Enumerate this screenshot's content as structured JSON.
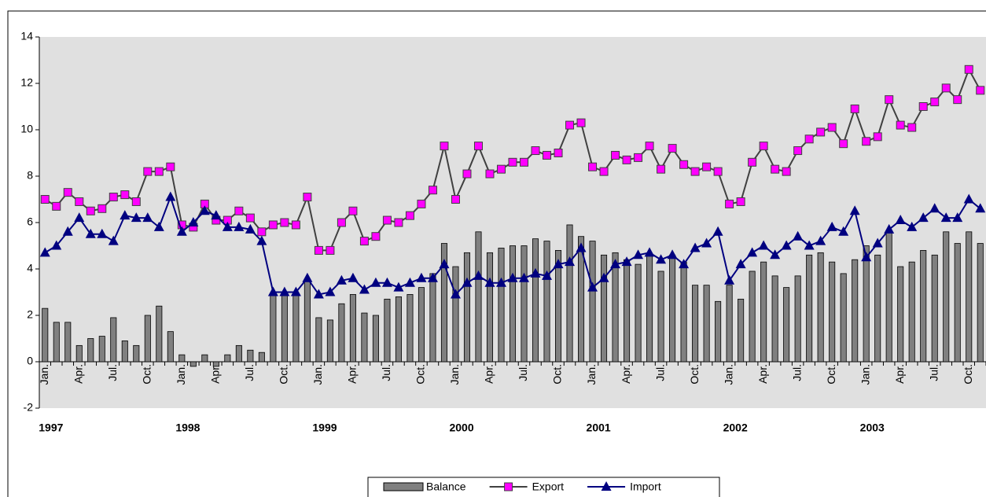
{
  "chart_data": {
    "type": "bar-line",
    "categories": [
      "Jan.",
      null,
      null,
      "Apr.",
      null,
      null,
      "Jul.",
      null,
      null,
      "Oct.",
      null,
      null,
      "Jan.",
      null,
      null,
      "Apr.",
      null,
      null,
      "Jul.",
      null,
      null,
      "Oct.",
      null,
      null,
      "Jan.",
      null,
      null,
      "Apr.",
      null,
      null,
      "Jul.",
      null,
      null,
      "Oct.",
      null,
      null,
      "Jan.",
      null,
      null,
      "Apr.",
      null,
      null,
      "Jul.",
      null,
      null,
      "Oct.",
      null,
      null,
      "Jan.",
      null,
      null,
      "Apr.",
      null,
      null,
      "Jul.",
      null,
      null,
      "Oct.",
      null,
      null,
      "Jan.",
      null,
      null,
      "Apr.",
      null,
      null,
      "Jul.",
      null,
      null,
      "Oct.",
      null,
      null,
      "Jan.",
      null,
      null,
      "Apr.",
      null,
      null,
      "Jul.",
      null,
      null,
      "Oct.",
      null
    ],
    "year_labels": [
      "1997",
      "1998",
      "1999",
      "2000",
      "2001",
      "2002",
      "2003"
    ],
    "ylim": [
      -2,
      14
    ],
    "yticks": [
      -2,
      0,
      2,
      4,
      6,
      8,
      10,
      12,
      14
    ],
    "series": [
      {
        "name": "Balance",
        "kind": "bar",
        "color": "#808080",
        "values": [
          2.3,
          1.7,
          1.7,
          0.7,
          1.0,
          1.1,
          1.9,
          0.9,
          0.7,
          2.0,
          2.4,
          1.3,
          0.3,
          -0.2,
          0.3,
          -0.2,
          0.3,
          0.7,
          0.5,
          0.4,
          2.9,
          3.0,
          2.9,
          3.5,
          1.9,
          1.8,
          2.5,
          2.9,
          2.1,
          2.0,
          2.7,
          2.8,
          2.9,
          3.2,
          3.8,
          5.1,
          4.1,
          4.7,
          5.6,
          4.7,
          4.9,
          5.0,
          5.0,
          5.3,
          5.2,
          4.8,
          5.9,
          5.4,
          5.2,
          4.6,
          4.7,
          4.4,
          4.2,
          4.6,
          3.9,
          4.6,
          4.3,
          3.3,
          3.3,
          2.6,
          3.3,
          2.7,
          3.9,
          4.3,
          3.7,
          3.2,
          3.7,
          4.6,
          4.7,
          4.3,
          3.8,
          4.4,
          5.0,
          4.6,
          5.6,
          4.1,
          4.3,
          4.8,
          4.6,
          5.6,
          5.1,
          5.6,
          5.1
        ]
      },
      {
        "name": "Export",
        "kind": "line",
        "marker": "square",
        "color": "#ff00ff",
        "line_color": "#404040",
        "values": [
          7.0,
          6.7,
          7.3,
          6.9,
          6.5,
          6.6,
          7.1,
          7.2,
          6.9,
          8.2,
          8.2,
          8.4,
          5.9,
          5.8,
          6.8,
          6.1,
          6.1,
          6.5,
          6.2,
          5.6,
          5.9,
          6.0,
          5.9,
          7.1,
          4.8,
          4.8,
          6.0,
          6.5,
          5.2,
          5.4,
          6.1,
          6.0,
          6.3,
          6.8,
          7.4,
          9.3,
          7.0,
          8.1,
          9.3,
          8.1,
          8.3,
          8.6,
          8.6,
          9.1,
          8.9,
          9.0,
          10.2,
          10.3,
          8.4,
          8.2,
          8.9,
          8.7,
          8.8,
          9.3,
          8.3,
          9.2,
          8.5,
          8.2,
          8.4,
          8.2,
          6.8,
          6.9,
          8.6,
          9.3,
          8.3,
          8.2,
          9.1,
          9.6,
          9.9,
          10.1,
          9.4,
          10.9,
          9.5,
          9.7,
          11.3,
          10.2,
          10.1,
          11.0,
          11.2,
          11.8,
          11.3,
          12.6,
          11.7
        ]
      },
      {
        "name": "Import",
        "kind": "line",
        "marker": "triangle",
        "color": "#000080",
        "line_color": "#000080",
        "values": [
          4.7,
          5.0,
          5.6,
          6.2,
          5.5,
          5.5,
          5.2,
          6.3,
          6.2,
          6.2,
          5.8,
          7.1,
          5.6,
          6.0,
          6.5,
          6.3,
          5.8,
          5.8,
          5.7,
          5.2,
          3.0,
          3.0,
          3.0,
          3.6,
          2.9,
          3.0,
          3.5,
          3.6,
          3.1,
          3.4,
          3.4,
          3.2,
          3.4,
          3.6,
          3.6,
          4.2,
          2.9,
          3.4,
          3.7,
          3.4,
          3.4,
          3.6,
          3.6,
          3.8,
          3.7,
          4.2,
          4.3,
          4.9,
          3.2,
          3.6,
          4.2,
          4.3,
          4.6,
          4.7,
          4.4,
          4.6,
          4.2,
          4.9,
          5.1,
          5.6,
          3.5,
          4.2,
          4.7,
          5.0,
          4.6,
          5.0,
          5.4,
          5.0,
          5.2,
          5.8,
          5.6,
          6.5,
          4.5,
          5.1,
          5.7,
          6.1,
          5.8,
          6.2,
          6.6,
          6.2,
          6.2,
          7.0,
          6.6
        ]
      }
    ],
    "legend": "bottom"
  }
}
